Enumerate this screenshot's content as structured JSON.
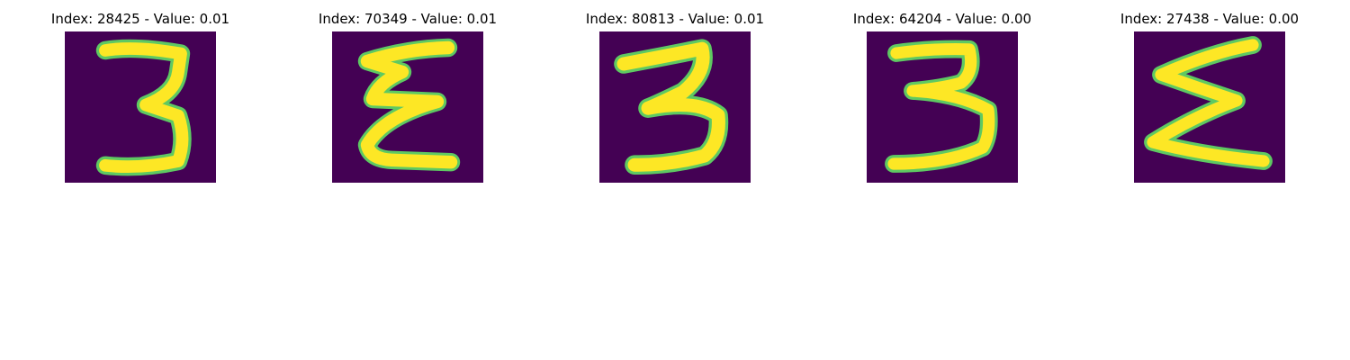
{
  "chart_data": {
    "type": "image-grid",
    "colors": {
      "background": "#440154",
      "mid": "#21918c",
      "stroke": "#fde725",
      "edge": "#5ec962"
    },
    "panels": [
      {
        "title": "Index: 28425 - Value: 0.01",
        "index": 28425,
        "value": 0.01,
        "depicts": "handwritten digit 3"
      },
      {
        "title": "Index: 70349 - Value: 0.01",
        "index": 70349,
        "value": 0.01,
        "depicts": "handwritten E-shaped 3"
      },
      {
        "title": "Index: 80813 - Value: 0.01",
        "index": 80813,
        "value": 0.01,
        "depicts": "handwritten digit 3"
      },
      {
        "title": "Index: 64204 - Value: 0.00",
        "index": 64204,
        "value": 0.0,
        "depicts": "handwritten digit 3"
      },
      {
        "title": "Index: 27438 - Value: 0.00",
        "index": 27438,
        "value": 0.0,
        "depicts": "handwritten sigma-shaped 3"
      }
    ]
  }
}
